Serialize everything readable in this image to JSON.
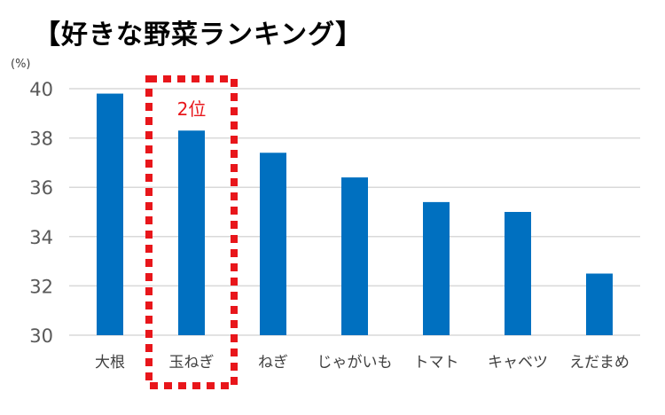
{
  "chart_data": {
    "type": "bar",
    "title": "【好きな野菜ランキング】",
    "unit": "(%)",
    "categories": [
      "大根",
      "玉ねぎ",
      "ねぎ",
      "じゃがいも",
      "トマト",
      "キャベツ",
      "えだまめ"
    ],
    "values": [
      39.8,
      38.3,
      37.4,
      36.4,
      35.4,
      35.0,
      32.5
    ],
    "ylim": [
      30,
      40
    ],
    "yticks": [
      30,
      32,
      34,
      36,
      38,
      40
    ],
    "grid": true,
    "legend": "none",
    "annotation": {
      "text": "2位",
      "category": "玉ねぎ"
    },
    "colors": {
      "bar": "#0070c0",
      "grid": "#d9d9d9",
      "highlight": "#e8161b"
    }
  }
}
